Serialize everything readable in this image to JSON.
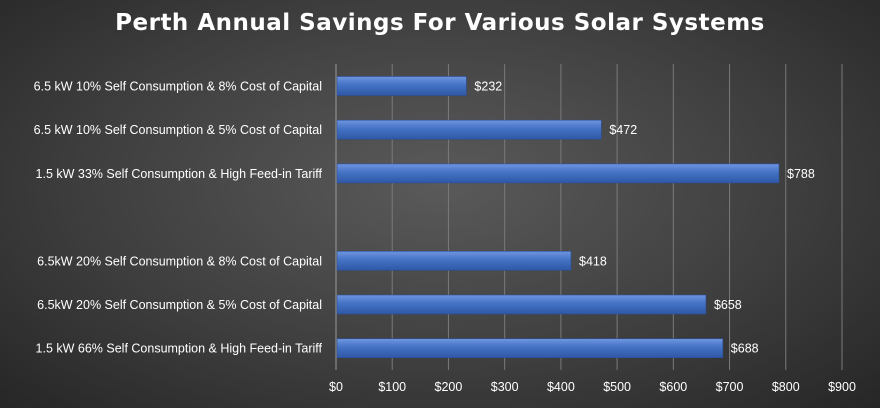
{
  "chart_data": {
    "type": "bar",
    "orientation": "horizontal",
    "title": "Perth Annual Savings For Various Solar Systems",
    "categories": [
      "6.5 kW 10% Self Consumption & 8% Cost of Capital",
      "6.5 kW 10% Self Consumption & 5% Cost of Capital",
      "1.5 kW 33% Self Consumption & High Feed-in Tariff",
      "",
      "6.5kW 20% Self Consumption & 8% Cost of Capital",
      "6.5kW 20% Self Consumption & 5% Cost of Capital",
      "1.5 kW 66% Self Consumption & High Feed-in Tariff"
    ],
    "values": [
      232,
      472,
      788,
      null,
      418,
      658,
      688
    ],
    "data_labels": [
      "$232",
      "$472",
      "$788",
      "",
      "$418",
      "$658",
      "$688"
    ],
    "xticks": [
      "$0",
      "$100",
      "$200",
      "$300",
      "$400",
      "$500",
      "$600",
      "$700",
      "$800",
      "$900"
    ],
    "xlim": [
      0,
      900
    ],
    "xlabel": "",
    "ylabel": "",
    "grid": true,
    "bar_color": "#4472c4"
  }
}
